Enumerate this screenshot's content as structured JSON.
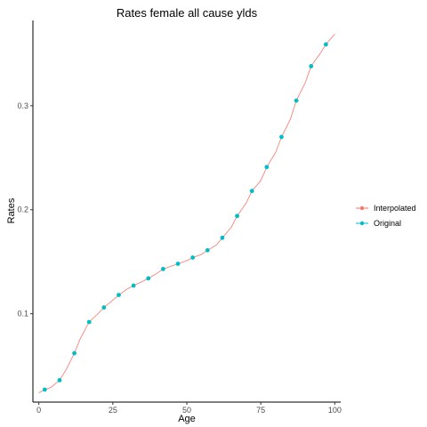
{
  "chart_data": {
    "type": "line",
    "title": "Rates female all cause ylds",
    "xlabel": "Age",
    "ylabel": "Rates",
    "xlim": [
      -2,
      102
    ],
    "ylim": [
      0.015,
      0.382
    ],
    "x_ticks": [
      {
        "value": 0,
        "label": "0"
      },
      {
        "value": 25,
        "label": "25"
      },
      {
        "value": 50,
        "label": "50"
      },
      {
        "value": 75,
        "label": "75"
      },
      {
        "value": 100,
        "label": "100"
      }
    ],
    "y_ticks": [
      {
        "value": 0.1,
        "label": "0.1"
      },
      {
        "value": 0.2,
        "label": "0.2"
      },
      {
        "value": 0.3,
        "label": "0.3"
      }
    ],
    "grid": false,
    "legend_position": "right",
    "series": [
      {
        "name": "Interpolated",
        "color": "#F8766D",
        "style": "line",
        "x": [
          0,
          2,
          4,
          7,
          9,
          12,
          14,
          17,
          20,
          22,
          25,
          27,
          30,
          32,
          35,
          37,
          40,
          42,
          45,
          47,
          50,
          52,
          55,
          57,
          60,
          62,
          65,
          67,
          70,
          72,
          75,
          77,
          80,
          82,
          85,
          87,
          90,
          92,
          95,
          97,
          100
        ],
        "y": [
          0.024,
          0.027,
          0.029,
          0.036,
          0.045,
          0.062,
          0.076,
          0.092,
          0.1,
          0.106,
          0.113,
          0.118,
          0.124,
          0.127,
          0.131,
          0.134,
          0.139,
          0.143,
          0.146,
          0.148,
          0.151,
          0.154,
          0.157,
          0.161,
          0.166,
          0.173,
          0.183,
          0.194,
          0.206,
          0.218,
          0.228,
          0.241,
          0.255,
          0.27,
          0.287,
          0.305,
          0.322,
          0.338,
          0.35,
          0.359,
          0.369
        ]
      },
      {
        "name": "Original",
        "color": "#00BFC4",
        "style": "points",
        "x": [
          2,
          7,
          12,
          17,
          22,
          27,
          32,
          37,
          42,
          47,
          52,
          57,
          62,
          67,
          72,
          77,
          82,
          87,
          92,
          97
        ],
        "y": [
          0.027,
          0.036,
          0.062,
          0.092,
          0.106,
          0.118,
          0.127,
          0.134,
          0.143,
          0.148,
          0.154,
          0.161,
          0.173,
          0.194,
          0.218,
          0.241,
          0.27,
          0.305,
          0.338,
          0.359
        ]
      }
    ]
  }
}
